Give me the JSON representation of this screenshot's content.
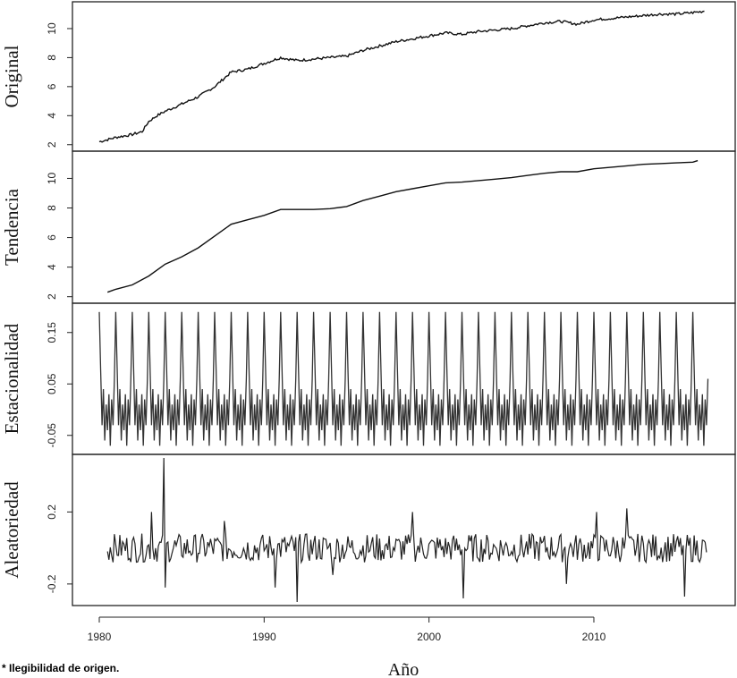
{
  "footnote": "* Ilegibilidad de origen.",
  "chart_data": {
    "type": "line",
    "xlabel": "Año",
    "xlim": [
      1980,
      2017
    ],
    "x_ticks": [
      1980,
      1990,
      2000,
      2010
    ],
    "panels": [
      {
        "id": "original",
        "ylabel": "Original",
        "ylim": [
          1.8,
          11.6
        ],
        "y_ticks": [
          2,
          4,
          6,
          8,
          10
        ],
        "y_tick_labels": [
          "2",
          "4",
          "6",
          "8",
          "10"
        ],
        "series": [
          {
            "x": [
              1980.0,
              1981.0,
              1982.0,
              1982.6,
              1983.0,
              1983.5,
              1984.0,
              1985.0,
              1986.0,
              1987.0,
              1988.0,
              1989.0,
              1990.0,
              1991.0,
              1992.0,
              1993.0,
              1994.0,
              1995.0,
              1996.0,
              1997.0,
              1998.0,
              1999.0,
              2000.0,
              2001.0,
              2002.0,
              2003.0,
              2004.0,
              2005.0,
              2006.0,
              2007.0,
              2008.0,
              2009.0,
              2010.0,
              2011.0,
              2012.0,
              2013.0,
              2014.0,
              2015.0,
              2016.0,
              2016.7
            ],
            "values": [
              2.2,
              2.5,
              2.7,
              2.9,
              3.6,
              4.0,
              4.3,
              4.8,
              5.3,
              6.0,
              7.0,
              7.2,
              7.6,
              8.0,
              7.8,
              7.9,
              8.0,
              8.1,
              8.5,
              8.8,
              9.1,
              9.3,
              9.5,
              9.7,
              9.6,
              9.8,
              9.9,
              10.0,
              10.2,
              10.4,
              10.5,
              10.3,
              10.6,
              10.7,
              10.8,
              10.9,
              11.0,
              11.0,
              11.1,
              11.2
            ]
          }
        ]
      },
      {
        "id": "tendencia",
        "ylabel": "Tendencia",
        "ylim": [
          1.8,
          11.6
        ],
        "y_ticks": [
          2,
          4,
          6,
          8,
          10
        ],
        "y_tick_labels": [
          "2",
          "4",
          "6",
          "8",
          "10"
        ],
        "series": [
          {
            "x": [
              1980.5,
              1981.0,
              1982.0,
              1983.0,
              1984.0,
              1985.0,
              1986.0,
              1987.0,
              1988.0,
              1989.0,
              1990.0,
              1991.0,
              1992.0,
              1993.0,
              1994.0,
              1995.0,
              1996.0,
              1997.0,
              1998.0,
              1999.0,
              2000.0,
              2001.0,
              2002.0,
              2003.0,
              2004.0,
              2005.0,
              2006.0,
              2007.0,
              2008.0,
              2009.0,
              2010.0,
              2011.0,
              2012.0,
              2013.0,
              2014.0,
              2015.0,
              2016.0,
              2016.3
            ],
            "values": [
              2.3,
              2.5,
              2.8,
              3.4,
              4.2,
              4.7,
              5.3,
              6.1,
              6.9,
              7.2,
              7.5,
              7.9,
              7.9,
              7.9,
              7.95,
              8.1,
              8.5,
              8.8,
              9.1,
              9.3,
              9.5,
              9.7,
              9.75,
              9.85,
              9.95,
              10.05,
              10.2,
              10.35,
              10.45,
              10.45,
              10.65,
              10.75,
              10.85,
              10.95,
              11.0,
              11.05,
              11.1,
              11.2
            ]
          }
        ]
      },
      {
        "id": "estacionalidad",
        "ylabel": "Estacionalidad",
        "ylim": [
          -0.08,
          0.2
        ],
        "y_ticks": [
          -0.05,
          0.05,
          0.15
        ],
        "y_tick_labels": [
          "-0.05",
          "0.05",
          "0.15"
        ],
        "seasonal_pattern": [
          0.19,
          0.08,
          -0.03,
          0.04,
          -0.06,
          0.01,
          -0.04,
          0.03,
          -0.07,
          0.02,
          -0.03,
          0.06
        ],
        "start_year": 1980,
        "end_year": 2017
      },
      {
        "id": "aleatoriedad",
        "ylabel": "Aleatoriedad",
        "ylim": [
          -0.3,
          0.5
        ],
        "y_ticks": [
          -0.2,
          0.2
        ],
        "y_tick_labels": [
          "-0.2",
          "0.2"
        ],
        "start_year": 1980.5,
        "end_year": 2016.8,
        "spikes": [
          {
            "x": 1983.2,
            "value": 0.2
          },
          {
            "x": 1983.9,
            "value": 0.5
          },
          {
            "x": 1984.0,
            "value": -0.22
          },
          {
            "x": 1987.6,
            "value": 0.15
          },
          {
            "x": 1990.7,
            "value": -0.22
          },
          {
            "x": 1992.0,
            "value": -0.3
          },
          {
            "x": 1994.2,
            "value": -0.15
          },
          {
            "x": 1999.0,
            "value": 0.2
          },
          {
            "x": 2002.1,
            "value": -0.28
          },
          {
            "x": 2008.3,
            "value": -0.2
          },
          {
            "x": 2010.2,
            "value": 0.2
          },
          {
            "x": 2012.0,
            "value": 0.22
          },
          {
            "x": 2015.5,
            "value": -0.27
          }
        ]
      }
    ]
  }
}
